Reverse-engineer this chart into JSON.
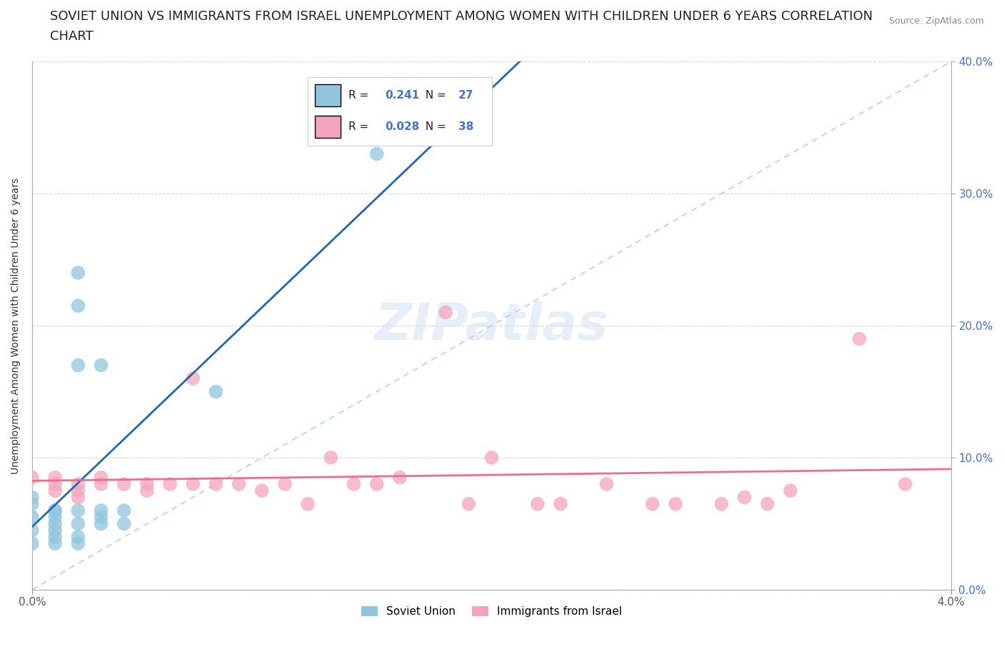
{
  "title_line1": "SOVIET UNION VS IMMIGRANTS FROM ISRAEL UNEMPLOYMENT AMONG WOMEN WITH CHILDREN UNDER 6 YEARS CORRELATION",
  "title_line2": "CHART",
  "source": "Source: ZipAtlas.com",
  "ylabel": "Unemployment Among Women with Children Under 6 years",
  "xlim": [
    0.0,
    0.04
  ],
  "ylim": [
    0.0,
    0.4
  ],
  "xtick_positions": [
    0.0,
    0.04
  ],
  "xtick_labels": [
    "0.0%",
    "4.0%"
  ],
  "ytick_positions": [
    0.0,
    0.1,
    0.2,
    0.3,
    0.4
  ],
  "ytick_labels": [
    "0.0%",
    "10.0%",
    "20.0%",
    "30.0%",
    "40.0%"
  ],
  "soviet_color": "#92c5de",
  "israel_color": "#f4a5bc",
  "soviet_line_color": "#2166ac",
  "israel_line_color": "#e8708a",
  "diag_color": "#aec7e8",
  "soviet_R": 0.241,
  "soviet_N": 27,
  "israel_R": 0.028,
  "israel_N": 38,
  "soviet_scatter_x": [
    0.0,
    0.0,
    0.0,
    0.0,
    0.0,
    0.001,
    0.001,
    0.001,
    0.001,
    0.001,
    0.001,
    0.001,
    0.002,
    0.002,
    0.002,
    0.002,
    0.002,
    0.002,
    0.002,
    0.003,
    0.003,
    0.003,
    0.003,
    0.004,
    0.004,
    0.008,
    0.015
  ],
  "soviet_scatter_y": [
    0.055,
    0.065,
    0.07,
    0.045,
    0.035,
    0.06,
    0.055,
    0.05,
    0.04,
    0.035,
    0.06,
    0.045,
    0.06,
    0.05,
    0.04,
    0.035,
    0.17,
    0.215,
    0.24,
    0.055,
    0.06,
    0.05,
    0.17,
    0.06,
    0.05,
    0.15,
    0.33
  ],
  "israel_scatter_x": [
    0.0,
    0.001,
    0.001,
    0.001,
    0.002,
    0.002,
    0.002,
    0.003,
    0.003,
    0.004,
    0.005,
    0.005,
    0.006,
    0.007,
    0.007,
    0.008,
    0.009,
    0.01,
    0.011,
    0.012,
    0.013,
    0.014,
    0.015,
    0.016,
    0.018,
    0.019,
    0.02,
    0.022,
    0.023,
    0.025,
    0.027,
    0.028,
    0.03,
    0.031,
    0.032,
    0.033,
    0.036,
    0.038
  ],
  "israel_scatter_y": [
    0.085,
    0.085,
    0.08,
    0.075,
    0.08,
    0.075,
    0.07,
    0.085,
    0.08,
    0.08,
    0.08,
    0.075,
    0.08,
    0.08,
    0.16,
    0.08,
    0.08,
    0.075,
    0.08,
    0.065,
    0.1,
    0.08,
    0.08,
    0.085,
    0.21,
    0.065,
    0.1,
    0.065,
    0.065,
    0.08,
    0.065,
    0.065,
    0.065,
    0.07,
    0.065,
    0.075,
    0.19,
    0.08
  ],
  "background_color": "#ffffff",
  "grid_color": "#cccccc",
  "watermark": "ZIPatlas",
  "title_fontsize": 13,
  "axis_label_fontsize": 10,
  "tick_fontsize": 11,
  "legend_fontsize": 12
}
